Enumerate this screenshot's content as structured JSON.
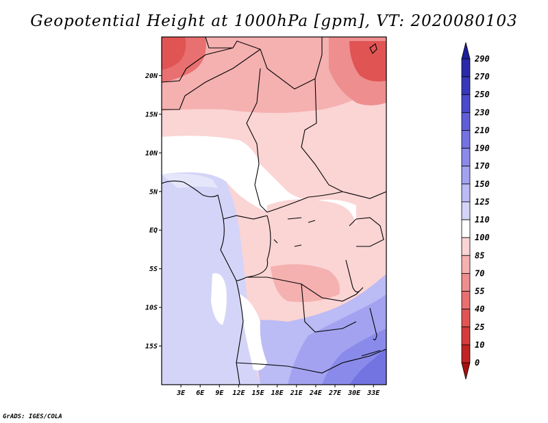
{
  "title": "Geopotential Height at 1000hPa [gpm], VT: 2020080103",
  "credit": "GrADS: IGES/COLA",
  "map": {
    "lon_labels": [
      "3E",
      "6E",
      "9E",
      "12E",
      "15E",
      "18E",
      "21E",
      "24E",
      "27E",
      "30E",
      "33E"
    ],
    "lat_labels": [
      "20N",
      "15N",
      "10N",
      "5N",
      "EQ",
      "5S",
      "10S",
      "15S"
    ],
    "lon_values": [
      3,
      6,
      9,
      12,
      15,
      18,
      21,
      24,
      27,
      30,
      33
    ],
    "lat_values": [
      20,
      15,
      10,
      5,
      0,
      -5,
      -10,
      -15
    ],
    "lon_range": [
      0,
      35
    ],
    "lat_range": [
      -20,
      25
    ]
  },
  "colorbar": {
    "labels": [
      "290",
      "270",
      "250",
      "230",
      "210",
      "190",
      "170",
      "150",
      "125",
      "110",
      "100",
      "85",
      "70",
      "55",
      "40",
      "25",
      "10",
      "0"
    ],
    "colors": [
      "#1e1e9a",
      "#2a2aaa",
      "#3838bb",
      "#4a4acc",
      "#5e5ed8",
      "#7373e2",
      "#8a8aeb",
      "#a2a2f0",
      "#bbbbf5",
      "#d4d4f8",
      "#ffffff",
      "#fbd4d4",
      "#f5b0b0",
      "#ee8e8e",
      "#e87070",
      "#e05454",
      "#d43c3c",
      "#c02424",
      "#a81010"
    ]
  }
}
